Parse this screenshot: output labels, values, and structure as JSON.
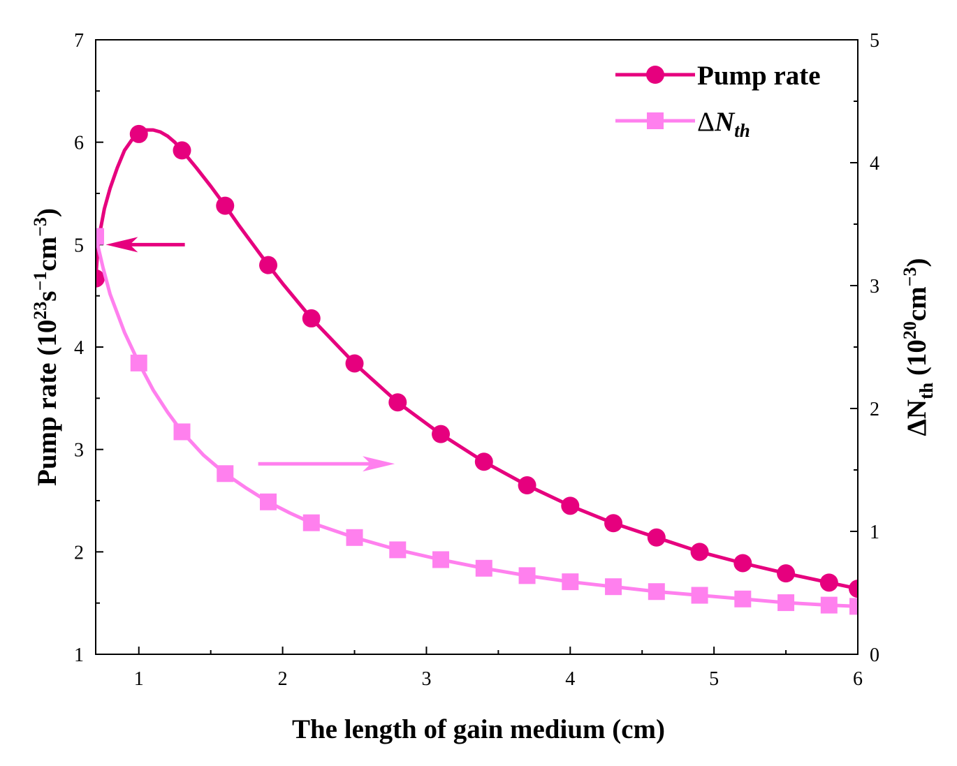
{
  "chart_data": {
    "type": "line",
    "xlabel": "The length of gain medium (cm)",
    "ylabel": {
      "prefix": "Pump rate (10",
      "exp1": "23",
      "mid1": "s",
      "exp2": "−1",
      "mid2": "cm",
      "exp3": "−3",
      "suffix": ")"
    },
    "y2label": {
      "delta": "ΔN",
      "sub": "th",
      "prefix": " (10",
      "exp1": "20",
      "mid1": "cm",
      "exp2": "−3",
      "suffix": ")"
    },
    "xlim": [
      0.7,
      6
    ],
    "ylim": [
      1,
      7
    ],
    "y2lim": [
      0,
      5
    ],
    "x_ticks": [
      "1",
      "2",
      "3",
      "4",
      "5",
      "6"
    ],
    "y_ticks": [
      "1",
      "2",
      "3",
      "4",
      "5",
      "6",
      "7"
    ],
    "y2_ticks": [
      "0",
      "1",
      "2",
      "3",
      "4",
      "5"
    ],
    "legend": {
      "position": "top-right",
      "pump_label": "Pump rate",
      "nth_delta": "Δ",
      "nth_N": "N",
      "nth_sub": "th"
    },
    "series": [
      {
        "name": "Pump rate",
        "axis": "left",
        "color": "#e6007e",
        "marker": "circle",
        "x": [
          0.7,
          1.0,
          1.3,
          1.6,
          1.9,
          2.2,
          2.5,
          2.8,
          3.1,
          3.4,
          3.7,
          4.0,
          4.3,
          4.6,
          4.9,
          5.2,
          5.5,
          5.8,
          6.0
        ],
        "values": [
          4.67,
          6.08,
          5.92,
          5.38,
          4.8,
          4.28,
          3.84,
          3.46,
          3.15,
          2.88,
          2.65,
          2.45,
          2.28,
          2.14,
          2.0,
          1.89,
          1.79,
          1.7,
          1.64
        ],
        "curve_x": [
          0.7,
          0.72,
          0.76,
          0.8,
          0.85,
          0.9,
          0.95,
          1.0,
          1.05,
          1.1,
          1.15,
          1.2,
          1.25,
          1.3,
          1.4,
          1.5,
          1.6,
          1.7,
          1.8,
          1.9,
          2.0,
          2.2,
          2.5,
          2.8,
          3.1,
          3.4,
          3.7,
          4.0,
          4.3,
          4.6,
          4.9,
          5.2,
          5.5,
          5.8,
          6.0
        ],
        "curve_y": [
          4.67,
          5.05,
          5.35,
          5.55,
          5.75,
          5.92,
          6.02,
          6.08,
          6.12,
          6.12,
          6.1,
          6.06,
          6.0,
          5.92,
          5.75,
          5.57,
          5.38,
          5.18,
          4.99,
          4.8,
          4.62,
          4.28,
          3.84,
          3.46,
          3.15,
          2.88,
          2.65,
          2.45,
          2.28,
          2.14,
          2.0,
          1.89,
          1.79,
          1.7,
          1.64
        ]
      },
      {
        "name": "ΔNth",
        "axis": "right",
        "color": "#ff80ee",
        "marker": "square",
        "x": [
          0.7,
          1.0,
          1.3,
          1.6,
          1.9,
          2.2,
          2.5,
          2.8,
          3.1,
          3.4,
          3.7,
          4.0,
          4.3,
          4.6,
          4.9,
          5.2,
          5.5,
          5.8,
          6.0
        ],
        "values": [
          3.4,
          2.37,
          1.81,
          1.47,
          1.24,
          1.07,
          0.95,
          0.85,
          0.77,
          0.7,
          0.64,
          0.59,
          0.55,
          0.51,
          0.48,
          0.45,
          0.42,
          0.4,
          0.39
        ],
        "curve_x": [
          0.7,
          0.75,
          0.8,
          0.9,
          1.0,
          1.1,
          1.2,
          1.3,
          1.45,
          1.6,
          1.75,
          1.9,
          2.05,
          2.2,
          2.5,
          2.8,
          3.1,
          3.4,
          3.7,
          4.0,
          4.3,
          4.6,
          4.9,
          5.2,
          5.5,
          5.8,
          6.0
        ],
        "curve_y": [
          3.4,
          3.15,
          2.93,
          2.62,
          2.37,
          2.15,
          1.97,
          1.81,
          1.62,
          1.47,
          1.35,
          1.24,
          1.15,
          1.07,
          0.95,
          0.85,
          0.77,
          0.7,
          0.64,
          0.59,
          0.55,
          0.51,
          0.48,
          0.45,
          0.42,
          0.4,
          0.39
        ]
      }
    ],
    "annotations": [
      {
        "type": "arrow",
        "direction": "left",
        "series": "Pump rate",
        "axis": "left",
        "from": [
          1.32,
          5.0
        ],
        "to": [
          0.77,
          5.0
        ]
      },
      {
        "type": "arrow",
        "direction": "right",
        "series": "ΔNth",
        "axis": "left",
        "from": [
          1.83,
          2.86
        ],
        "to": [
          2.78,
          2.86
        ]
      }
    ]
  }
}
